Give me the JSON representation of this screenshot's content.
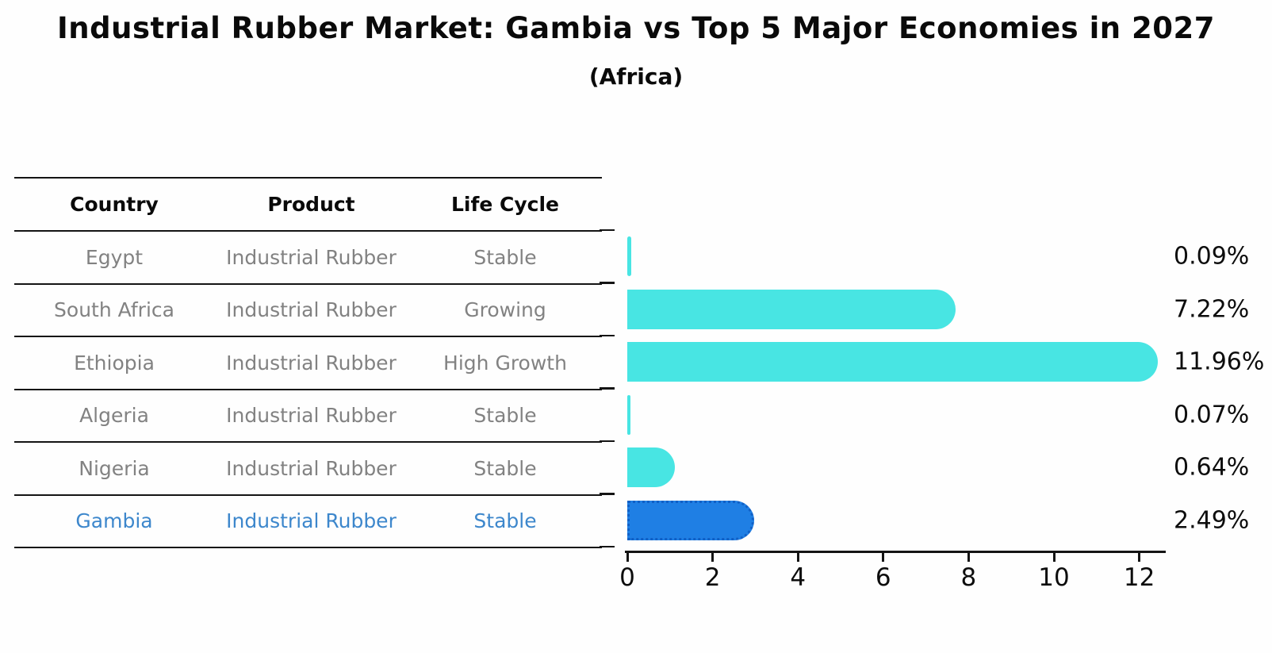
{
  "title": "Industrial Rubber Market: Gambia vs Top 5 Major Economies in 2027",
  "subtitle": "(Africa)",
  "table": {
    "headers": [
      "Country",
      "Product",
      "Life Cycle"
    ],
    "rows": [
      {
        "country": "Egypt",
        "product": "Industrial Rubber",
        "life_cycle": "Stable"
      },
      {
        "country": "South Africa",
        "product": "Industrial Rubber",
        "life_cycle": "Growing"
      },
      {
        "country": "Ethiopia",
        "product": "Industrial Rubber",
        "life_cycle": "High Growth"
      },
      {
        "country": "Algeria",
        "product": "Industrial Rubber",
        "life_cycle": "Stable"
      },
      {
        "country": "Nigeria",
        "product": "Industrial Rubber",
        "life_cycle": "Stable"
      },
      {
        "country": "Gambia",
        "product": "Industrial Rubber",
        "life_cycle": "Stable"
      }
    ],
    "highlight_country": "Gambia"
  },
  "chart_data": {
    "type": "bar",
    "orientation": "horizontal",
    "title": "Industrial Rubber Market: Gambia vs Top 5 Major Economies in 2027 (Africa)",
    "categories": [
      "Egypt",
      "South Africa",
      "Ethiopia",
      "Algeria",
      "Nigeria",
      "Gambia"
    ],
    "values": [
      0.09,
      7.22,
      11.96,
      0.07,
      0.64,
      2.49
    ],
    "value_labels": [
      "0.09%",
      "7.22%",
      "11.96%",
      "0.07%",
      "0.64%",
      "2.49%"
    ],
    "x_ticks": [
      "0",
      "2",
      "4",
      "6",
      "8",
      "10",
      "12"
    ],
    "xlim": [
      0,
      12.6
    ],
    "grid": false,
    "legend_position": "none",
    "bar_color": "#48e5e3",
    "highlight_index": 5,
    "highlight_bar_color": "#1f7fe4",
    "highlight_border_color": "#1160c6",
    "highlight_text_color": "#3d87cc"
  }
}
